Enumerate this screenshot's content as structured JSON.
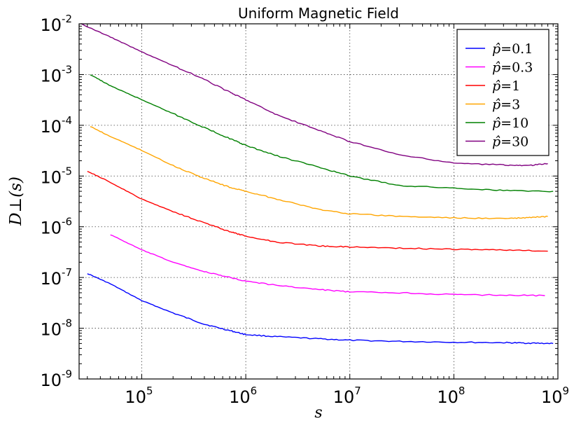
{
  "chart_data": {
    "type": "line",
    "title": "Uniform Magnetic Field",
    "xlabel": "s",
    "ylabel": "D⊥(s)",
    "xscale": "log",
    "yscale": "log",
    "xlim": [
      25000,
      1000000000
    ],
    "ylim": [
      1e-09,
      0.01
    ],
    "grid": true,
    "legend_position": "top-right",
    "x_ticks": [
      {
        "value": 100000,
        "base": "10",
        "exp": "5"
      },
      {
        "value": 1000000,
        "base": "10",
        "exp": "6"
      },
      {
        "value": 10000000,
        "base": "10",
        "exp": "7"
      },
      {
        "value": 100000000,
        "base": "10",
        "exp": "8"
      },
      {
        "value": 1000000000,
        "base": "10",
        "exp": "9"
      }
    ],
    "y_ticks": [
      {
        "value": 1e-09,
        "base": "10",
        "exp": "-9"
      },
      {
        "value": 1e-08,
        "base": "10",
        "exp": "-8"
      },
      {
        "value": 1e-07,
        "base": "10",
        "exp": "-7"
      },
      {
        "value": 1e-06,
        "base": "10",
        "exp": "-6"
      },
      {
        "value": 1e-05,
        "base": "10",
        "exp": "-5"
      },
      {
        "value": 0.0001,
        "base": "10",
        "exp": "-4"
      },
      {
        "value": 0.001,
        "base": "10",
        "exp": "-3"
      },
      {
        "value": 0.01,
        "base": "10",
        "exp": "-2"
      }
    ],
    "series": [
      {
        "name": "p̂ = 0.1",
        "label_prefix": "p̂",
        "label_value": "=0.1",
        "color": "#0000ff",
        "points": [
          [
            30000,
            1.2e-07
          ],
          [
            50000,
            7.5e-08
          ],
          [
            100000,
            3.5e-08
          ],
          [
            200000,
            2e-08
          ],
          [
            400000,
            1.2e-08
          ],
          [
            700000,
            9e-09
          ],
          [
            1000000,
            7.5e-09
          ],
          [
            2000000,
            6.8e-09
          ],
          [
            5000000,
            6.2e-09
          ],
          [
            10000000,
            5.8e-09
          ],
          [
            30000000,
            5.5e-09
          ],
          [
            100000000,
            5.3e-09
          ],
          [
            300000000,
            5.2e-09
          ],
          [
            500000000,
            5.1e-09
          ],
          [
            900000000,
            5e-09
          ]
        ]
      },
      {
        "name": "p̂ = 0.3",
        "label_prefix": "p̂",
        "label_value": "=0.3",
        "color": "#ff00ff",
        "points": [
          [
            50000,
            7e-07
          ],
          [
            100000,
            3.5e-07
          ],
          [
            200000,
            2e-07
          ],
          [
            400000,
            1.3e-07
          ],
          [
            700000,
            1e-07
          ],
          [
            1000000,
            8.5e-08
          ],
          [
            2000000,
            7e-08
          ],
          [
            5000000,
            5.8e-08
          ],
          [
            10000000,
            5.2e-08
          ],
          [
            30000000,
            5e-08
          ],
          [
            100000000,
            4.6e-08
          ],
          [
            300000000,
            4.5e-08
          ],
          [
            750000000,
            4.4e-08
          ]
        ]
      },
      {
        "name": "p̂ = 1",
        "label_prefix": "p̂",
        "label_value": "=1",
        "color": "#ff0000",
        "points": [
          [
            30000,
            1.25e-05
          ],
          [
            50000,
            7.5e-06
          ],
          [
            100000,
            3.5e-06
          ],
          [
            200000,
            2e-06
          ],
          [
            400000,
            1.2e-06
          ],
          [
            700000,
            8e-07
          ],
          [
            1000000,
            6.5e-07
          ],
          [
            2000000,
            5e-07
          ],
          [
            5000000,
            4.2e-07
          ],
          [
            10000000,
            4e-07
          ],
          [
            30000000,
            3.8e-07
          ],
          [
            100000000,
            3.6e-07
          ],
          [
            300000000,
            3.5e-07
          ],
          [
            800000000,
            3.3e-07
          ]
        ]
      },
      {
        "name": "p̂ = 3",
        "label_prefix": "p̂",
        "label_value": "=3",
        "color": "#ffa500",
        "points": [
          [
            32000,
            9.5e-05
          ],
          [
            50000,
            6e-05
          ],
          [
            100000,
            3.2e-05
          ],
          [
            200000,
            1.6e-05
          ],
          [
            400000,
            9e-06
          ],
          [
            700000,
            6e-06
          ],
          [
            1000000,
            5e-06
          ],
          [
            2000000,
            3.5e-06
          ],
          [
            5000000,
            2.2e-06
          ],
          [
            10000000,
            1.8e-06
          ],
          [
            30000000,
            1.6e-06
          ],
          [
            100000000,
            1.5e-06
          ],
          [
            300000000,
            1.45e-06
          ],
          [
            500000000,
            1.5e-06
          ],
          [
            800000000,
            1.6e-06
          ]
        ]
      },
      {
        "name": "p̂ = 10",
        "label_prefix": "p̂",
        "label_value": "=10",
        "color": "#008000",
        "points": [
          [
            32000,
            0.001
          ],
          [
            50000,
            0.0006
          ],
          [
            100000,
            0.00032
          ],
          [
            200000,
            0.00017
          ],
          [
            400000,
            9e-05
          ],
          [
            700000,
            5.5e-05
          ],
          [
            1000000,
            4e-05
          ],
          [
            2000000,
            2.5e-05
          ],
          [
            5000000,
            1.5e-05
          ],
          [
            10000000,
            1e-05
          ],
          [
            30000000,
            6.5e-06
          ],
          [
            100000000,
            5.8e-06
          ],
          [
            300000000,
            5.2e-06
          ],
          [
            900000000,
            5e-06
          ]
        ]
      },
      {
        "name": "p̂ = 30",
        "label_prefix": "p̂",
        "label_value": "=30",
        "color": "#800080",
        "points": [
          [
            26000,
            0.01
          ],
          [
            50000,
            0.0055
          ],
          [
            100000,
            0.0028
          ],
          [
            200000,
            0.0015
          ],
          [
            400000,
            0.0008
          ],
          [
            700000,
            0.00045
          ],
          [
            1000000,
            0.00032
          ],
          [
            2000000,
            0.00016
          ],
          [
            5000000,
            8e-05
          ],
          [
            10000000,
            4.8e-05
          ],
          [
            30000000,
            2.6e-05
          ],
          [
            100000000,
            1.8e-05
          ],
          [
            300000000,
            1.65e-05
          ],
          [
            500000000,
            1.6e-05
          ],
          [
            800000000,
            1.75e-05
          ]
        ]
      }
    ]
  }
}
